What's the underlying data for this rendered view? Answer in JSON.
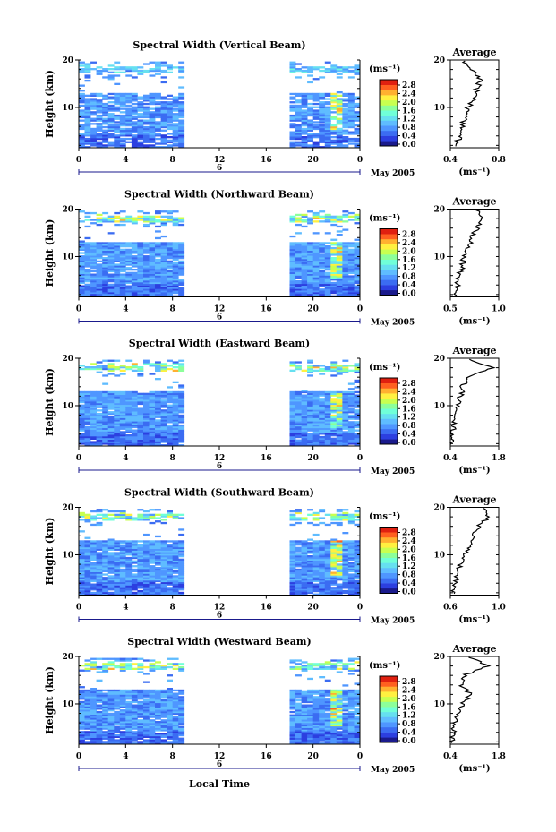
{
  "colors": {
    "scale": [
      "#1a1a8c",
      "#2c3fe0",
      "#3b6cf2",
      "#4f96ff",
      "#5fbcff",
      "#66e0f0",
      "#70ffd8",
      "#8cff9a",
      "#c8ff50",
      "#fff040",
      "#ffb030",
      "#ff6020",
      "#e02010"
    ],
    "background": "#ffffff",
    "ink": "#000000"
  },
  "x_axis_label": "Local Time",
  "date_label": "May 2005",
  "day_label": "6",
  "panels": [
    {
      "title": "Spectral Width (Vertical Beam)",
      "ylabel": "Height (km)",
      "x_ticks": [
        "0",
        "4",
        "8",
        "12",
        "16",
        "20",
        "0"
      ],
      "y_ticks": [
        "20",
        "10"
      ],
      "colorbar_unit": "(ms⁻¹)",
      "colorbar_ticks": [
        "2.8",
        "2.4",
        "2.0",
        "1.6",
        "1.2",
        "0.8",
        "0.4",
        "0.0"
      ],
      "avg_title": "Average",
      "avg_y_ticks": [
        "20",
        "10"
      ],
      "avg_x_ticks": [
        "0.4",
        "0.8"
      ],
      "avg_unit": "(ms⁻¹)"
    },
    {
      "title": "Spectral Width (Northward Beam)",
      "ylabel": "Height (km)",
      "x_ticks": [
        "0",
        "4",
        "8",
        "12",
        "16",
        "20",
        "0"
      ],
      "y_ticks": [
        "20",
        "10"
      ],
      "colorbar_unit": "(ms⁻¹)",
      "colorbar_ticks": [
        "2.8",
        "2.4",
        "2.0",
        "1.6",
        "1.2",
        "0.8",
        "0.4",
        "0.0"
      ],
      "avg_title": "Average",
      "avg_y_ticks": [
        "20",
        "10"
      ],
      "avg_x_ticks": [
        "0.5",
        "1.0"
      ],
      "avg_unit": "(ms⁻¹)"
    },
    {
      "title": "Spectral Width (Eastward Beam)",
      "ylabel": "Height (km)",
      "x_ticks": [
        "0",
        "4",
        "8",
        "12",
        "16",
        "20",
        "0"
      ],
      "y_ticks": [
        "20",
        "10"
      ],
      "colorbar_unit": "(ms⁻¹)",
      "colorbar_ticks": [
        "2.8",
        "2.4",
        "2.0",
        "1.6",
        "1.2",
        "0.8",
        "0.4",
        "0.0"
      ],
      "avg_title": "Average",
      "avg_y_ticks": [
        "20",
        "10"
      ],
      "avg_x_ticks": [
        "0.4",
        "1.8"
      ],
      "avg_unit": "(ms⁻¹)"
    },
    {
      "title": "Spectral Width (Southward Beam)",
      "ylabel": "Height (km)",
      "x_ticks": [
        "0",
        "4",
        "8",
        "12",
        "16",
        "20",
        "0"
      ],
      "y_ticks": [
        "20",
        "10"
      ],
      "colorbar_unit": "(ms⁻¹)",
      "colorbar_ticks": [
        "2.8",
        "2.4",
        "2.0",
        "1.6",
        "1.2",
        "0.8",
        "0.4",
        "0.0"
      ],
      "avg_title": "Average",
      "avg_y_ticks": [
        "20",
        "10"
      ],
      "avg_x_ticks": [
        "0.6",
        "1.0"
      ],
      "avg_unit": "(ms⁻¹)"
    },
    {
      "title": "Spectral Width (Westward Beam)",
      "ylabel": "Height (km)",
      "x_ticks": [
        "0",
        "4",
        "8",
        "12",
        "16",
        "20",
        "0"
      ],
      "y_ticks": [
        "20",
        "10"
      ],
      "colorbar_unit": "(ms⁻¹)",
      "colorbar_ticks": [
        "2.8",
        "2.4",
        "2.0",
        "1.6",
        "1.2",
        "0.8",
        "0.4",
        "0.0"
      ],
      "avg_title": "Average",
      "avg_y_ticks": [
        "20",
        "10"
      ],
      "avg_x_ticks": [
        "0.4",
        "1.8"
      ],
      "avg_unit": "(ms⁻¹)"
    }
  ],
  "chart_data": [
    {
      "type": "heatmap",
      "title": "Spectral Width (Vertical Beam)",
      "xlabel": "Local Time",
      "ylabel": "Height (km)",
      "x_range": [
        0,
        24
      ],
      "y_range": [
        1.5,
        20
      ],
      "data_gaps_hours": [
        [
          9,
          18
        ]
      ],
      "colorbar_range": [
        0.0,
        3.0
      ],
      "average_profile": {
        "x_range": [
          0.4,
          0.8
        ],
        "heights_km": [
          2,
          4,
          6,
          8,
          10,
          12,
          14,
          16,
          18,
          20
        ],
        "values": [
          0.45,
          0.48,
          0.5,
          0.52,
          0.55,
          0.6,
          0.62,
          0.65,
          0.58,
          0.5
        ]
      }
    },
    {
      "type": "heatmap",
      "title": "Spectral Width (Northward Beam)",
      "xlabel": "Local Time",
      "ylabel": "Height (km)",
      "x_range": [
        0,
        24
      ],
      "y_range": [
        1.5,
        20
      ],
      "data_gaps_hours": [
        [
          9,
          18
        ]
      ],
      "colorbar_range": [
        0.0,
        3.0
      ],
      "average_profile": {
        "x_range": [
          0.4,
          1.2
        ],
        "heights_km": [
          2,
          4,
          6,
          8,
          10,
          12,
          14,
          16,
          18,
          20
        ],
        "values": [
          0.5,
          0.52,
          0.55,
          0.6,
          0.62,
          0.7,
          0.75,
          0.85,
          0.95,
          0.8
        ]
      }
    },
    {
      "type": "heatmap",
      "title": "Spectral Width (Eastward Beam)",
      "xlabel": "Local Time",
      "ylabel": "Height (km)",
      "x_range": [
        0,
        24
      ],
      "y_range": [
        1.5,
        20
      ],
      "data_gaps_hours": [
        [
          9,
          18
        ]
      ],
      "colorbar_range": [
        0.0,
        3.0
      ],
      "average_profile": {
        "x_range": [
          0.4,
          1.8
        ],
        "heights_km": [
          2,
          4,
          6,
          8,
          10,
          12,
          14,
          16,
          18,
          20
        ],
        "values": [
          0.45,
          0.47,
          0.5,
          0.55,
          0.6,
          0.7,
          0.75,
          0.9,
          1.6,
          0.8
        ]
      }
    },
    {
      "type": "heatmap",
      "title": "Spectral Width (Southward Beam)",
      "xlabel": "Local Time",
      "ylabel": "Height (km)",
      "x_range": [
        0,
        24
      ],
      "y_range": [
        1.5,
        20
      ],
      "data_gaps_hours": [
        [
          9,
          18
        ]
      ],
      "colorbar_range": [
        0.0,
        3.0
      ],
      "average_profile": {
        "x_range": [
          0.5,
          1.2
        ],
        "heights_km": [
          2,
          4,
          6,
          8,
          10,
          12,
          14,
          16,
          18,
          20
        ],
        "values": [
          0.55,
          0.58,
          0.6,
          0.65,
          0.72,
          0.8,
          0.85,
          0.9,
          1.05,
          0.95
        ]
      }
    },
    {
      "type": "heatmap",
      "title": "Spectral Width (Westward Beam)",
      "xlabel": "Local Time",
      "ylabel": "Height (km)",
      "x_range": [
        0,
        24
      ],
      "y_range": [
        1.5,
        20
      ],
      "data_gaps_hours": [
        [
          9,
          18
        ]
      ],
      "colorbar_range": [
        0.0,
        3.0
      ],
      "average_profile": {
        "x_range": [
          0.4,
          1.8
        ],
        "heights_km": [
          2,
          4,
          6,
          8,
          10,
          12,
          14,
          16,
          18,
          20
        ],
        "values": [
          0.45,
          0.5,
          0.55,
          0.6,
          0.75,
          1.0,
          0.7,
          0.8,
          1.5,
          0.9
        ]
      }
    }
  ]
}
